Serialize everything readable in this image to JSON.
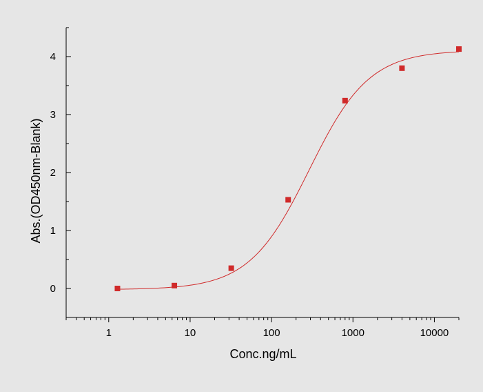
{
  "chart_data": {
    "type": "scatter",
    "title": "",
    "xlabel": "Conc.ng/mL",
    "ylabel": "Abs.(OD450nm-Blank)",
    "xscale": "log",
    "xlim": [
      0.3,
      20000
    ],
    "ylim": [
      -0.5,
      4.5
    ],
    "x_ticks": [
      1,
      10,
      100,
      1000,
      10000
    ],
    "x_tick_labels": [
      "1",
      "10",
      "100",
      "1000",
      "10000"
    ],
    "y_ticks": [
      0,
      1,
      2,
      3,
      4
    ],
    "y_tick_labels": [
      "0",
      "1",
      "2",
      "3",
      "4"
    ],
    "grid": false,
    "legend": "none",
    "series": [
      {
        "marker": "square",
        "color": "#d02a2a",
        "x": [
          1.28,
          6.4,
          32,
          160,
          800,
          4000,
          20000
        ],
        "y": [
          0.0,
          0.05,
          0.35,
          1.53,
          3.24,
          3.8,
          4.13
        ]
      }
    ],
    "fit_curve": {
      "model": "four-parameter logistic",
      "color": "#d02a2a",
      "bottom": -0.02,
      "top": 4.11,
      "ec50": 290,
      "hill": 1.18
    }
  }
}
